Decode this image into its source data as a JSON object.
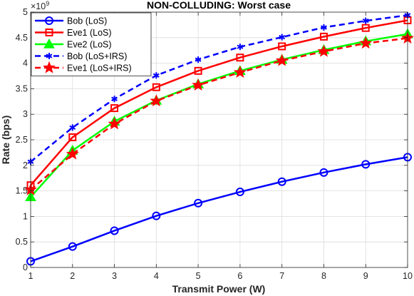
{
  "chart_data": {
    "type": "line",
    "title": "NON-COLLUDING: Worst case",
    "xlabel": "Transmit Power (W)",
    "ylabel": "Rate (bps)",
    "y_exponent_label": "×10",
    "y_exponent_power": "9",
    "xlim": [
      1,
      10
    ],
    "ylim": [
      0,
      5
    ],
    "xticks": [
      "1",
      "2",
      "3",
      "4",
      "5",
      "6",
      "7",
      "8",
      "9",
      "10"
    ],
    "yticks": [
      "0",
      "0.5",
      "1",
      "1.5",
      "2",
      "2.5",
      "3",
      "3.5",
      "4",
      "4.5",
      "5"
    ],
    "grid": true,
    "legend_position": "top-left",
    "x": [
      1,
      2,
      3,
      4,
      5,
      6,
      7,
      8,
      9,
      10
    ],
    "series": [
      {
        "name": "Bob (LoS)",
        "color": "#0000ff",
        "dash": "solid",
        "marker": "circle",
        "values": [
          0.12,
          0.41,
          0.72,
          1.01,
          1.26,
          1.48,
          1.68,
          1.86,
          2.02,
          2.16
        ]
      },
      {
        "name": "Eve1 (LoS)",
        "color": "#ff0000",
        "dash": "solid",
        "marker": "square",
        "values": [
          1.61,
          2.55,
          3.12,
          3.53,
          3.85,
          4.11,
          4.33,
          4.52,
          4.69,
          4.84
        ]
      },
      {
        "name": "Eve2 (LoS)",
        "color": "#00ff00",
        "dash": "solid",
        "marker": "triangle",
        "values": [
          1.38,
          2.29,
          2.86,
          3.27,
          3.59,
          3.85,
          4.07,
          4.26,
          4.43,
          4.57
        ]
      },
      {
        "name": "Bob (LoS+IRS)",
        "color": "#0000ff",
        "dash": "dashed",
        "marker": "asterisk",
        "values": [
          2.07,
          2.74,
          3.3,
          3.76,
          4.07,
          4.32,
          4.51,
          4.7,
          4.83,
          4.94
        ]
      },
      {
        "name": "Eve1 (LoS+IRS)",
        "color": "#ff0000",
        "dash": "dashed",
        "marker": "star",
        "values": [
          1.52,
          2.22,
          2.81,
          3.26,
          3.57,
          3.82,
          4.05,
          4.23,
          4.39,
          4.49
        ]
      }
    ]
  }
}
